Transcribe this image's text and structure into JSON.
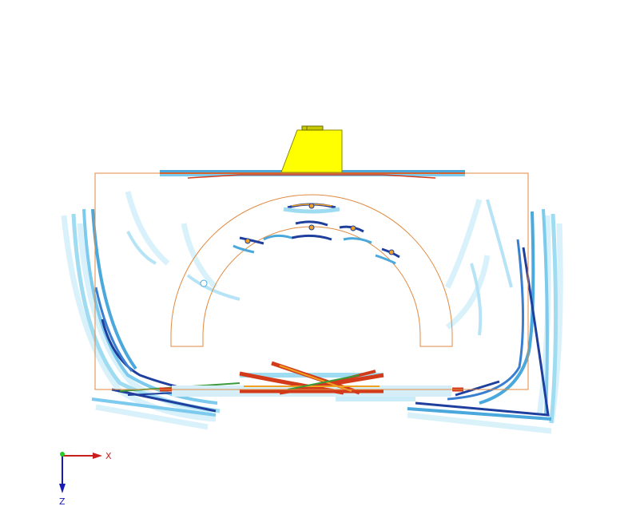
{
  "axes": {
    "x_label": "X",
    "z_label": "Z",
    "colors": {
      "x": "#c81e1e",
      "y": "#22cc22",
      "z": "#1a1ab4"
    }
  },
  "colors": {
    "probe": "#ffff00",
    "probe_edge": "#8a8a00",
    "boundary": "#e08a40",
    "beam_light": "#9fdcf2",
    "beam_mid": "#4aa8dc",
    "beam_dark": "#1f3f9e",
    "beam_hot": "#d23a1a",
    "beam_warm": "#f0a020",
    "beam_green": "#3a9a3a"
  },
  "icons": [
    "ultrasonic-probe",
    "coordinate-axes-icon"
  ]
}
